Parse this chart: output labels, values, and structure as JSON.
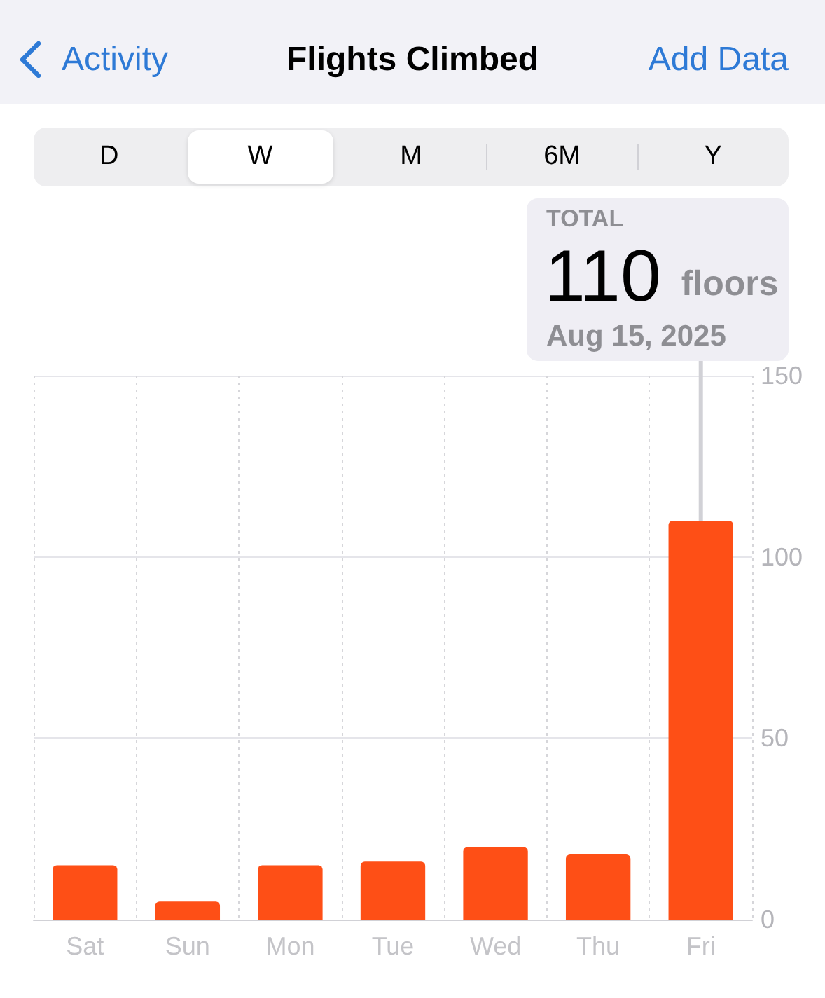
{
  "chart_data": {
    "type": "bar",
    "title": "Flights Climbed",
    "categories": [
      "Sat",
      "Sun",
      "Mon",
      "Tue",
      "Wed",
      "Thu",
      "Fri"
    ],
    "values": [
      15,
      5,
      15,
      16,
      20,
      18,
      110
    ],
    "color": "#fe4f16",
    "ylim": [
      0,
      150
    ],
    "yticks": [
      0,
      50,
      100,
      150
    ],
    "grid": true,
    "annotations": [
      "Activity",
      "Add Data",
      "D",
      "W",
      "M",
      "6M",
      "Y",
      "TOTAL",
      {
        "text": "110 floors",
        "x": "Fri",
        "y": 110
      },
      "Aug 15, 2025"
    ]
  }
}
